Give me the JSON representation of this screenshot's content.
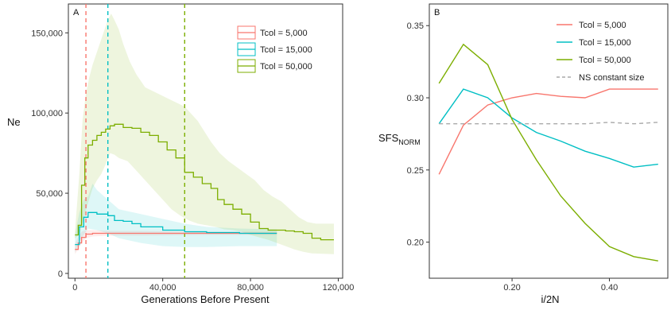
{
  "colors": {
    "series_5000": "#F8766D",
    "series_15000": "#00BFC4",
    "series_50000": "#7CAE00",
    "ns_constant": "#AAAAAA",
    "panel_border": "#333333",
    "axis": "#333333"
  },
  "chart_data": [
    {
      "type": "line",
      "panel_label": "A",
      "xlabel": "Generations Before Present",
      "ylabel": "Ne",
      "xlim": [
        -3000,
        122000
      ],
      "ylim": [
        -3000,
        168000
      ],
      "x_ticks": [
        0,
        40000,
        80000,
        120000
      ],
      "x_tick_labels": [
        "0",
        "40,000",
        "80,000",
        "120,000"
      ],
      "y_ticks": [
        0,
        50000,
        100000,
        150000
      ],
      "y_tick_labels": [
        "0",
        "50,000",
        "100,000",
        "150,000"
      ],
      "grid": false,
      "legend_position": "top-right",
      "legend": [
        "Tcol = 5,000",
        "Tcol = 15,000",
        "Tcol = 50,000"
      ],
      "vlines": [
        {
          "x": 5000,
          "series": "Tcol = 5,000",
          "style": "dashed"
        },
        {
          "x": 15000,
          "series": "Tcol = 15,000",
          "style": "dashed"
        },
        {
          "x": 50000,
          "series": "Tcol = 50,000",
          "style": "dashed"
        }
      ],
      "series": [
        {
          "name": "Tcol = 5,000",
          "color_key": "series_5000",
          "points": [
            [
              0,
              15000
            ],
            [
              1500,
              19000
            ],
            [
              3000,
              22500
            ],
            [
              5000,
              24500
            ],
            [
              8000,
              25000
            ],
            [
              15000,
              25000
            ],
            [
              30000,
              25000
            ],
            [
              60000,
              25000
            ],
            [
              92000,
              25000
            ]
          ],
          "band_upper": [
            [
              0,
              18000
            ],
            [
              1500,
              23000
            ],
            [
              3000,
              26000
            ],
            [
              5000,
              27000
            ],
            [
              8000,
              27000
            ],
            [
              15000,
              26500
            ],
            [
              30000,
              26500
            ],
            [
              60000,
              26000
            ],
            [
              92000,
              26000
            ]
          ],
          "band_lower": [
            [
              0,
              12000
            ],
            [
              1500,
              15000
            ],
            [
              3000,
              19000
            ],
            [
              5000,
              22000
            ],
            [
              8000,
              23000
            ],
            [
              15000,
              23500
            ],
            [
              30000,
              23500
            ],
            [
              60000,
              24000
            ],
            [
              92000,
              24000
            ]
          ]
        },
        {
          "name": "Tcol = 15,000",
          "color_key": "series_15000",
          "points": [
            [
              0,
              18000
            ],
            [
              2000,
              29000
            ],
            [
              4000,
              35000
            ],
            [
              6000,
              38000
            ],
            [
              10000,
              37000
            ],
            [
              15000,
              36000
            ],
            [
              18000,
              33000
            ],
            [
              22000,
              32500
            ],
            [
              26000,
              31000
            ],
            [
              30000,
              29000
            ],
            [
              40000,
              27000
            ],
            [
              50000,
              26000
            ],
            [
              60000,
              25500
            ],
            [
              75000,
              25000
            ],
            [
              92000,
              25000
            ]
          ],
          "band_upper": [
            [
              0,
              24000
            ],
            [
              2000,
              38000
            ],
            [
              4000,
              46000
            ],
            [
              6000,
              48000
            ],
            [
              8000,
              56000
            ],
            [
              10000,
              52000
            ],
            [
              15000,
              46000
            ],
            [
              20000,
              40000
            ],
            [
              30000,
              37000
            ],
            [
              40000,
              34000
            ],
            [
              50000,
              31000
            ],
            [
              60000,
              29000
            ],
            [
              75000,
              28000
            ],
            [
              92000,
              27500
            ]
          ],
          "band_lower": [
            [
              0,
              13000
            ],
            [
              2000,
              20000
            ],
            [
              4000,
              24000
            ],
            [
              6000,
              28000
            ],
            [
              10000,
              27000
            ],
            [
              15000,
              25000
            ],
            [
              20000,
              22000
            ],
            [
              30000,
              19000
            ],
            [
              40000,
              17000
            ],
            [
              50000,
              16500
            ],
            [
              60000,
              16500
            ],
            [
              75000,
              17000
            ],
            [
              92000,
              17000
            ]
          ]
        },
        {
          "name": "Tcol = 50,000",
          "color_key": "series_50000",
          "points": [
            [
              0,
              24000
            ],
            [
              1500,
              30000
            ],
            [
              3000,
              55000
            ],
            [
              4500,
              72000
            ],
            [
              6000,
              80000
            ],
            [
              8000,
              83000
            ],
            [
              10000,
              86000
            ],
            [
              12000,
              88000
            ],
            [
              14000,
              90000
            ],
            [
              16000,
              92000
            ],
            [
              18000,
              93000
            ],
            [
              22000,
              91000
            ],
            [
              26000,
              90500
            ],
            [
              30000,
              88000
            ],
            [
              34000,
              86000
            ],
            [
              38000,
              82000
            ],
            [
              42000,
              77000
            ],
            [
              46000,
              72000
            ],
            [
              50000,
              63000
            ],
            [
              54000,
              60000
            ],
            [
              58000,
              56000
            ],
            [
              62000,
              53000
            ],
            [
              65000,
              46000
            ],
            [
              68000,
              43000
            ],
            [
              72000,
              40000
            ],
            [
              76000,
              37000
            ],
            [
              80000,
              32000
            ],
            [
              84000,
              28000
            ],
            [
              88000,
              27000
            ],
            [
              92000,
              27000
            ],
            [
              96000,
              26500
            ],
            [
              100000,
              26000
            ],
            [
              104000,
              25000
            ],
            [
              108000,
              22000
            ],
            [
              112000,
              21000
            ],
            [
              118000,
              21000
            ]
          ],
          "band_upper": [
            [
              0,
              26000
            ],
            [
              2000,
              62000
            ],
            [
              3500,
              96000
            ],
            [
              5000,
              112000
            ],
            [
              6500,
              122000
            ],
            [
              8000,
              130000
            ],
            [
              10000,
              138000
            ],
            [
              12000,
              146000
            ],
            [
              13500,
              152000
            ],
            [
              15000,
              158000
            ],
            [
              16500,
              162000
            ],
            [
              18000,
              158000
            ],
            [
              20000,
              152000
            ],
            [
              22000,
              143000
            ],
            [
              25000,
              132000
            ],
            [
              28000,
              124000
            ],
            [
              32000,
              116000
            ],
            [
              38000,
              112000
            ],
            [
              44000,
              108000
            ],
            [
              50000,
              104000
            ],
            [
              56000,
              95000
            ],
            [
              62000,
              82000
            ],
            [
              66000,
              75000
            ],
            [
              70000,
              70000
            ],
            [
              74000,
              66000
            ],
            [
              78000,
              62000
            ],
            [
              82000,
              58000
            ],
            [
              86000,
              52000
            ],
            [
              90000,
              48000
            ],
            [
              94000,
              45000
            ],
            [
              98000,
              40000
            ],
            [
              102000,
              35000
            ],
            [
              106000,
              32000
            ],
            [
              110000,
              31000
            ],
            [
              118000,
              31000
            ]
          ],
          "band_lower": [
            [
              0,
              22000
            ],
            [
              2000,
              24000
            ],
            [
              4000,
              34000
            ],
            [
              6000,
              44000
            ],
            [
              8000,
              53000
            ],
            [
              10000,
              58000
            ],
            [
              12000,
              62000
            ],
            [
              14000,
              68000
            ],
            [
              16000,
              75000
            ],
            [
              18000,
              74000
            ],
            [
              20000,
              72000
            ],
            [
              24000,
              70000
            ],
            [
              28000,
              64000
            ],
            [
              32000,
              58000
            ],
            [
              36000,
              52000
            ],
            [
              40000,
              46000
            ],
            [
              44000,
              40000
            ],
            [
              48000,
              36000
            ],
            [
              52000,
              33000
            ],
            [
              56000,
              31000
            ],
            [
              60000,
              30000
            ],
            [
              64000,
              29000
            ],
            [
              68000,
              27500
            ],
            [
              72000,
              27000
            ],
            [
              76000,
              26000
            ],
            [
              80000,
              24000
            ],
            [
              84000,
              22500
            ],
            [
              88000,
              21000
            ],
            [
              92000,
              19000
            ],
            [
              96000,
              17000
            ],
            [
              100000,
              15000
            ],
            [
              104000,
              13500
            ],
            [
              108000,
              12500
            ],
            [
              118000,
              12000
            ]
          ]
        }
      ]
    },
    {
      "type": "line",
      "panel_label": "B",
      "xlabel": "i/2N",
      "ylabel": "SFS",
      "ylabel_subscript": "NORM",
      "xlim": [
        0.03,
        0.52
      ],
      "ylim": [
        0.175,
        0.365
      ],
      "x_ticks": [
        0.2,
        0.4
      ],
      "x_tick_labels": [
        "0.20",
        "0.40"
      ],
      "y_ticks": [
        0.2,
        0.25,
        0.3,
        0.35
      ],
      "y_tick_labels": [
        "0.20",
        "0.25",
        "0.30",
        "0.35"
      ],
      "grid": false,
      "legend_position": "top-right",
      "legend": [
        "Tcol = 5,000",
        "Tcol = 15,000",
        "Tcol = 50,000",
        "NS constant size"
      ],
      "series": [
        {
          "name": "Tcol = 5,000",
          "color_key": "series_5000",
          "style": "solid",
          "x": [
            0.05,
            0.1,
            0.15,
            0.2,
            0.25,
            0.3,
            0.35,
            0.4,
            0.45,
            0.5
          ],
          "values": [
            0.247,
            0.281,
            0.295,
            0.3,
            0.303,
            0.301,
            0.3,
            0.306,
            0.306,
            0.306
          ]
        },
        {
          "name": "Tcol = 15,000",
          "color_key": "series_15000",
          "style": "solid",
          "x": [
            0.05,
            0.1,
            0.15,
            0.2,
            0.25,
            0.3,
            0.35,
            0.4,
            0.45,
            0.5
          ],
          "values": [
            0.282,
            0.306,
            0.3,
            0.286,
            0.276,
            0.27,
            0.263,
            0.258,
            0.252,
            0.254
          ]
        },
        {
          "name": "Tcol = 50,000",
          "color_key": "series_50000",
          "style": "solid",
          "x": [
            0.05,
            0.1,
            0.15,
            0.2,
            0.25,
            0.3,
            0.35,
            0.4,
            0.45,
            0.5
          ],
          "values": [
            0.31,
            0.337,
            0.323,
            0.285,
            0.257,
            0.232,
            0.213,
            0.197,
            0.19,
            0.187
          ]
        },
        {
          "name": "NS constant size",
          "color_key": "ns_constant",
          "style": "dashed",
          "x": [
            0.05,
            0.1,
            0.15,
            0.2,
            0.25,
            0.3,
            0.35,
            0.4,
            0.45,
            0.5
          ],
          "values": [
            0.282,
            0.282,
            0.282,
            0.282,
            0.282,
            0.282,
            0.282,
            0.283,
            0.282,
            0.283
          ]
        }
      ]
    }
  ]
}
